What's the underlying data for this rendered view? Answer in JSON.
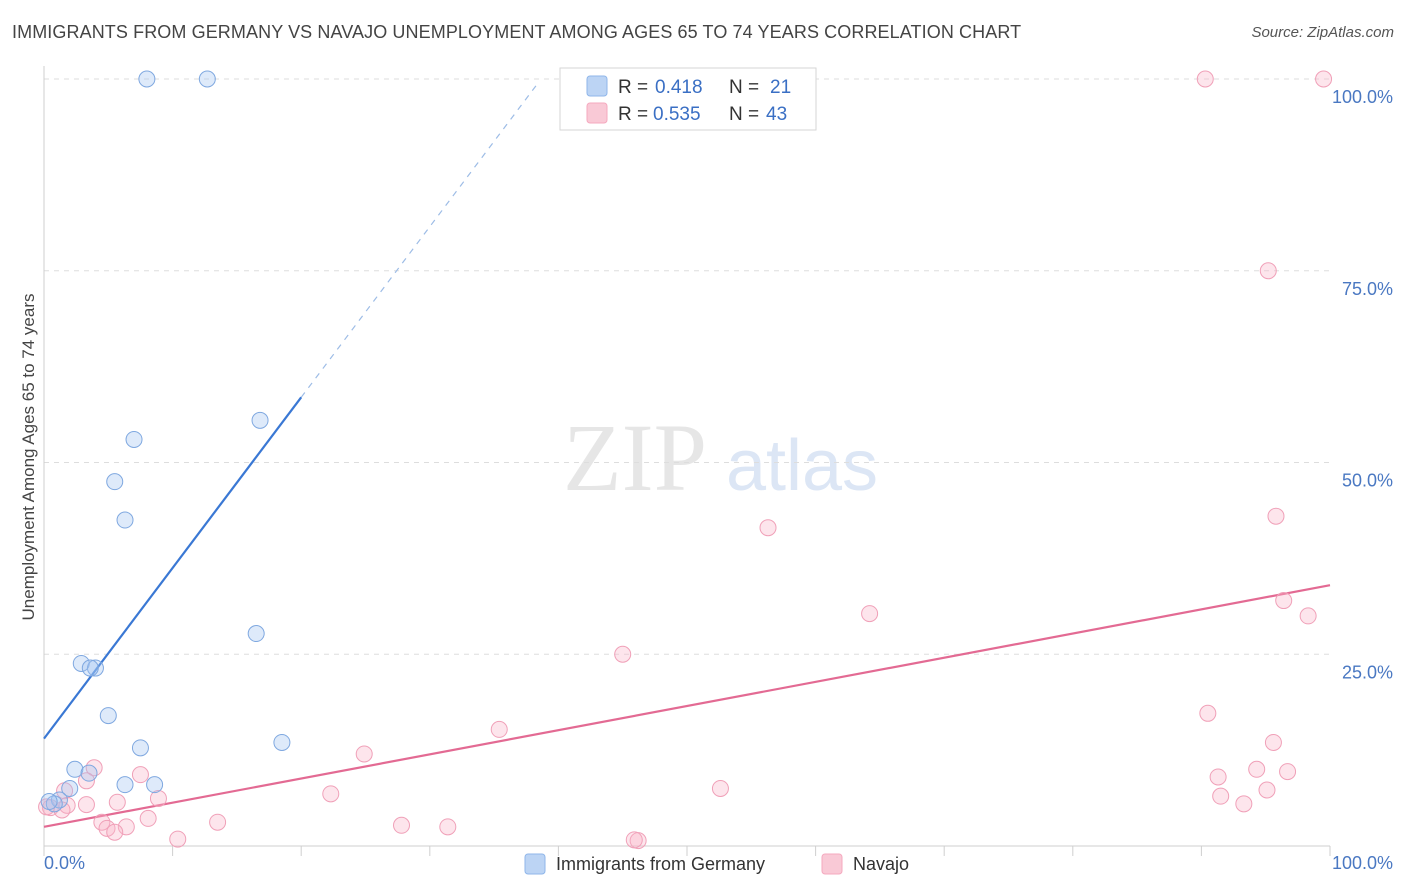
{
  "title": "IMMIGRANTS FROM GERMANY VS NAVAJO UNEMPLOYMENT AMONG AGES 65 TO 74 YEARS CORRELATION CHART",
  "source": "Source: ZipAtlas.com",
  "watermark": {
    "zip": "ZIP",
    "atlas": "atlas"
  },
  "chart_data": {
    "type": "scatter",
    "title": "IMMIGRANTS FROM GERMANY VS NAVAJO UNEMPLOYMENT AMONG AGES 65 TO 74 YEARS CORRELATION CHART",
    "xlabel": "",
    "ylabel": "Unemployment Among Ages 65 to 74 years",
    "xlim": [
      0,
      100
    ],
    "ylim": [
      0,
      100
    ],
    "x_tick_labels": [
      "0.0%",
      "100.0%"
    ],
    "y_ticks": [
      25,
      50,
      75,
      100
    ],
    "y_tick_labels": [
      "25.0%",
      "50.0%",
      "75.0%",
      "100.0%"
    ],
    "series": [
      {
        "name": "Immigrants from Germany",
        "color": "#8fb6ea",
        "line_color": "#3a78d4",
        "R": "0.418",
        "N": "21",
        "trend": {
          "x0": 0,
          "y0": 14,
          "x1": 20,
          "y1": 58.5,
          "dash_to_x": 38.5
        },
        "points": [
          [
            8,
            100
          ],
          [
            12.7,
            100
          ],
          [
            16.8,
            55.5
          ],
          [
            7,
            53
          ],
          [
            5.5,
            47.5
          ],
          [
            6.3,
            42.5
          ],
          [
            16.5,
            27.7
          ],
          [
            2.9,
            23.8
          ],
          [
            4,
            23.2
          ],
          [
            3.6,
            23.2
          ],
          [
            5,
            17
          ],
          [
            7.5,
            12.8
          ],
          [
            18.5,
            13.5
          ],
          [
            2.4,
            10
          ],
          [
            3.5,
            9.5
          ],
          [
            6.3,
            8
          ],
          [
            8.6,
            8
          ],
          [
            2,
            7.5
          ],
          [
            1.2,
            6
          ],
          [
            0.8,
            5.5
          ],
          [
            0.4,
            5.8
          ]
        ]
      },
      {
        "name": "Navajo",
        "color": "#f5a9bf",
        "line_color": "#e36a93",
        "R": "0.535",
        "N": "43",
        "trend": {
          "x0": 0,
          "y0": 2.5,
          "x1": 100,
          "y1": 34
        },
        "points": [
          [
            90.3,
            100
          ],
          [
            99.5,
            100
          ],
          [
            95.2,
            75
          ],
          [
            95.8,
            43
          ],
          [
            56.3,
            41.5
          ],
          [
            96.4,
            32
          ],
          [
            98.3,
            30
          ],
          [
            64.2,
            30.3
          ],
          [
            45,
            25
          ],
          [
            90.5,
            17.3
          ],
          [
            35.4,
            15.2
          ],
          [
            95.6,
            13.5
          ],
          [
            24.9,
            12
          ],
          [
            3.9,
            10.2
          ],
          [
            91.3,
            9
          ],
          [
            94.3,
            10
          ],
          [
            96.7,
            9.7
          ],
          [
            7.5,
            9.3
          ],
          [
            3.3,
            8.5
          ],
          [
            52.6,
            7.5
          ],
          [
            22.3,
            6.8
          ],
          [
            1.6,
            7.2
          ],
          [
            91.5,
            6.5
          ],
          [
            95.1,
            7.3
          ],
          [
            93.3,
            5.5
          ],
          [
            8.9,
            6.2
          ],
          [
            5.7,
            5.7
          ],
          [
            3.3,
            5.4
          ],
          [
            1.8,
            5.3
          ],
          [
            0.5,
            5
          ],
          [
            1.4,
            4.7
          ],
          [
            8.1,
            3.6
          ],
          [
            13.5,
            3.1
          ],
          [
            4.5,
            3.1
          ],
          [
            6.4,
            2.5
          ],
          [
            27.8,
            2.7
          ],
          [
            31.4,
            2.5
          ],
          [
            4.9,
            2.3
          ],
          [
            5.5,
            1.8
          ],
          [
            10.4,
            0.9
          ],
          [
            46.2,
            0.7
          ],
          [
            45.9,
            0.8
          ],
          [
            0.2,
            5.1
          ]
        ]
      }
    ]
  },
  "legend": {
    "r_label": "R =",
    "n_label": "N =",
    "series_names": [
      "Immigrants from Germany",
      "Navajo"
    ]
  },
  "colors": {
    "blue": "#3a78d4",
    "pink": "#e36a93",
    "grid": "#dddddd",
    "tick": "#4a78c2"
  }
}
